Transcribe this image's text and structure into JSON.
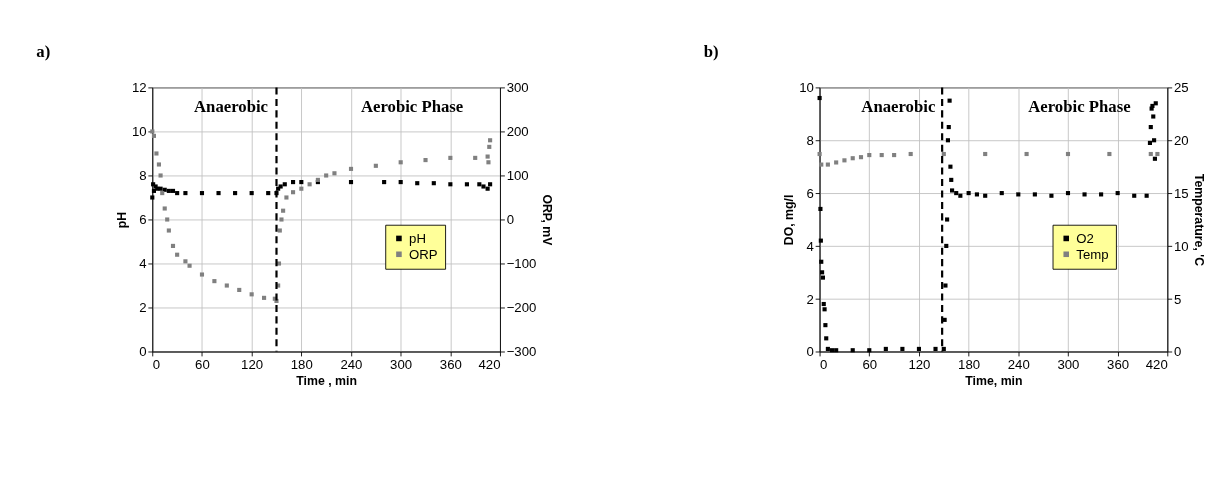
{
  "chart_data": [
    {
      "type": "scatter",
      "title": "a)",
      "xlabel": "Time , min",
      "ylabel": "pH",
      "y2label": "ORP, mV",
      "xlim": [
        0,
        420
      ],
      "xticks": [
        0,
        60,
        120,
        180,
        240,
        300,
        360,
        420
      ],
      "ylim": [
        0,
        12
      ],
      "yticks": [
        0,
        2,
        4,
        6,
        8,
        10,
        12
      ],
      "y2lim": [
        -300,
        300
      ],
      "y2ticks": [
        -300,
        -200,
        -100,
        0,
        100,
        200,
        300
      ],
      "marker": "square",
      "grid": true,
      "legend": "right",
      "ref_lines": [
        {
          "axis": "x",
          "value": 150,
          "label": null,
          "color": "#000000",
          "line_style": "dashed"
        }
      ],
      "annotations": [
        "Anaerobic",
        "Aerobic Phase"
      ],
      "series": [
        {
          "name": "pH",
          "color": "#000000",
          "axis": "y",
          "x": [
            0,
            1,
            2,
            4,
            6,
            10,
            15,
            20,
            25,
            30,
            40,
            60,
            80,
            100,
            120,
            140,
            150,
            152,
            155,
            160,
            170,
            180,
            200,
            240,
            280,
            300,
            320,
            340,
            360,
            380,
            395,
            400,
            405,
            408
          ],
          "values": [
            7.0,
            7.6,
            7.3,
            7.5,
            7.4,
            7.4,
            7.35,
            7.3,
            7.3,
            7.2,
            7.2,
            7.2,
            7.2,
            7.2,
            7.2,
            7.2,
            7.2,
            7.4,
            7.5,
            7.6,
            7.7,
            7.7,
            7.7,
            7.7,
            7.7,
            7.7,
            7.65,
            7.65,
            7.6,
            7.6,
            7.6,
            7.5,
            7.4,
            7.6
          ]
        },
        {
          "name": "ORP",
          "color": "#808080",
          "axis": "y2",
          "x": [
            0,
            2,
            5,
            8,
            10,
            12,
            15,
            18,
            20,
            25,
            30,
            40,
            45,
            60,
            75,
            90,
            105,
            120,
            135,
            148,
            150,
            152,
            153,
            154,
            156,
            158,
            162,
            170,
            180,
            190,
            200,
            210,
            220,
            240,
            270,
            300,
            330,
            360,
            390,
            405,
            406,
            407,
            408
          ],
          "values": [
            200,
            190,
            150,
            125,
            100,
            60,
            25,
            0,
            -25,
            -60,
            -80,
            -95,
            -105,
            -125,
            -140,
            -150,
            -160,
            -170,
            -178,
            -180,
            -185,
            -150,
            -100,
            -25,
            0,
            20,
            50,
            62,
            70,
            80,
            90,
            100,
            105,
            115,
            122,
            130,
            135,
            140,
            140,
            143,
            130,
            165,
            180
          ]
        }
      ]
    },
    {
      "type": "scatter",
      "title": "b)",
      "xlabel": "Time, min",
      "ylabel": "DO, mg/l",
      "y2label": "Temperature, 'C",
      "xlim": [
        0,
        420
      ],
      "xticks": [
        0,
        60,
        120,
        180,
        240,
        300,
        360,
        420
      ],
      "ylim": [
        0,
        10
      ],
      "yticks": [
        0,
        2,
        4,
        6,
        8,
        10
      ],
      "y2lim": [
        0,
        25
      ],
      "y2ticks": [
        0,
        5,
        10,
        15,
        20,
        25
      ],
      "marker": "square",
      "grid": true,
      "legend": "right",
      "ref_lines": [
        {
          "axis": "x",
          "value": 148,
          "label": null,
          "color": "#000000",
          "line_style": "dashed"
        }
      ],
      "annotations": [
        "Anaerobic",
        "Aerobic Phase"
      ],
      "series": [
        {
          "name": "O2",
          "color": "#000000",
          "axis": "y",
          "x": [
            0,
            1,
            1.5,
            2,
            3,
            4,
            5,
            6,
            7,
            8,
            10,
            15,
            20,
            40,
            60,
            80,
            100,
            120,
            140,
            150,
            151,
            152,
            153,
            154,
            155,
            156,
            157,
            158,
            159,
            160,
            165,
            170,
            180,
            190,
            200,
            220,
            240,
            260,
            280,
            300,
            320,
            340,
            360,
            380,
            395,
            399,
            400,
            401,
            402,
            403,
            404,
            405,
            406
          ],
          "values": [
            9.6,
            5.4,
            4.2,
            3.4,
            3.0,
            2.8,
            1.8,
            1.6,
            1.0,
            0.5,
            0.1,
            0.05,
            0.05,
            0.05,
            0.05,
            0.1,
            0.1,
            0.1,
            0.1,
            0.1,
            1.2,
            2.5,
            4.0,
            5.0,
            8.0,
            8.5,
            9.5,
            7.0,
            6.5,
            6.1,
            6.0,
            5.9,
            6.0,
            5.95,
            5.9,
            6.0,
            5.95,
            5.95,
            5.9,
            6.0,
            5.95,
            5.95,
            6.0,
            5.9,
            5.9,
            7.9,
            8.5,
            9.2,
            9.3,
            8.9,
            8.0,
            7.3,
            9.4
          ]
        },
        {
          "name": "Temp",
          "color": "#808080",
          "axis": "y2",
          "x": [
            0,
            2,
            10,
            20,
            30,
            40,
            50,
            60,
            75,
            90,
            110,
            150,
            200,
            250,
            300,
            350,
            400,
            408
          ],
          "values": [
            18.7,
            17.7,
            17.7,
            17.9,
            18.1,
            18.3,
            18.4,
            18.6,
            18.6,
            18.6,
            18.7,
            18.7,
            18.7,
            18.7,
            18.7,
            18.7,
            18.7,
            18.7
          ]
        }
      ]
    }
  ]
}
